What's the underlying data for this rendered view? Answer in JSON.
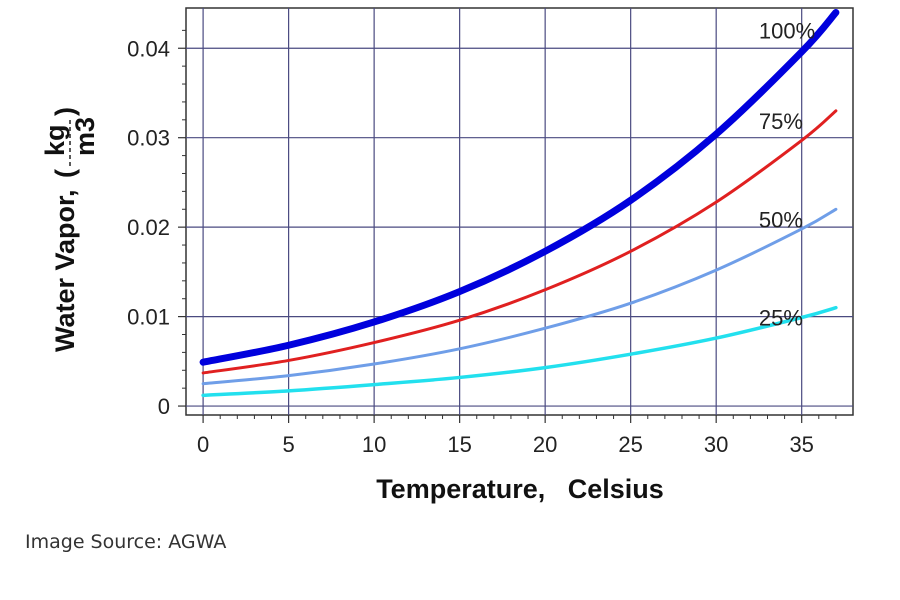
{
  "chart_data": {
    "type": "line",
    "xlabel": "Temperature,   Celsius",
    "ylabel": "Water Vapor,",
    "ylabel_unit": {
      "num": "kg",
      "den": "m3"
    },
    "xlim": [
      -1,
      38
    ],
    "ylim": [
      -0.001,
      0.0445
    ],
    "x_ticks": [
      0,
      5,
      10,
      15,
      20,
      25,
      30,
      35
    ],
    "y_ticks": [
      0,
      0.01,
      0.02,
      0.03,
      0.04
    ],
    "x_tick_labels": [
      "0",
      "5",
      "10",
      "15",
      "20",
      "25",
      "30",
      "35"
    ],
    "y_tick_labels": [
      "0",
      "0.01",
      "0.02",
      "0.03",
      "0.04"
    ],
    "grid": true,
    "x": [
      0,
      5,
      10,
      15,
      20,
      25,
      30,
      35,
      37
    ],
    "series": [
      {
        "name": "100%",
        "color": "#0000dd",
        "values": [
          0.0049,
          0.0068,
          0.0094,
          0.0128,
          0.0173,
          0.023,
          0.0304,
          0.0396,
          0.044
        ]
      },
      {
        "name": "75%",
        "color": "#e02020",
        "values": [
          0.0037,
          0.0051,
          0.0071,
          0.0096,
          0.013,
          0.0173,
          0.0228,
          0.0297,
          0.033
        ]
      },
      {
        "name": "50%",
        "color": "#6f9ee8",
        "values": [
          0.0025,
          0.0034,
          0.0047,
          0.0064,
          0.0087,
          0.0115,
          0.0152,
          0.0198,
          0.022
        ]
      },
      {
        "name": "25%",
        "color": "#22e0ee",
        "values": [
          0.0012,
          0.0017,
          0.0024,
          0.0032,
          0.0043,
          0.0058,
          0.0076,
          0.0099,
          0.011
        ]
      }
    ]
  },
  "source": "Image Source: AGWA"
}
